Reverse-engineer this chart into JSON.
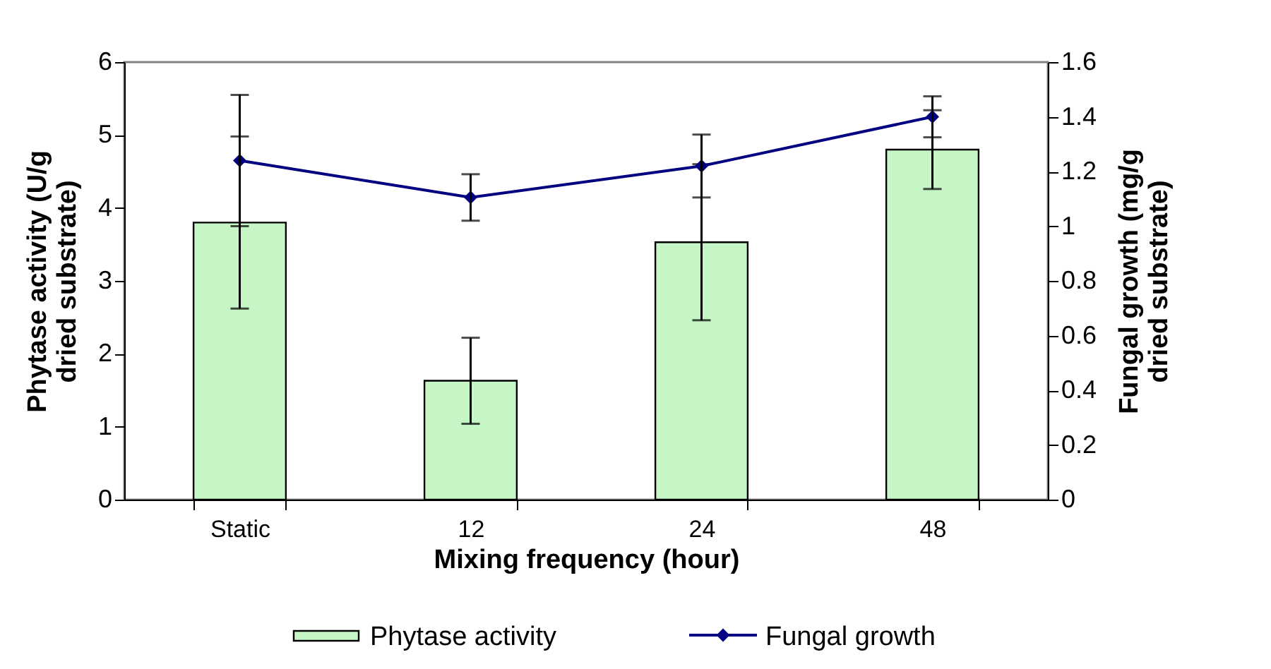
{
  "chart_data": {
    "type": "bar",
    "categories": [
      "Static",
      "12",
      "24",
      "48"
    ],
    "xlabel": "Mixing frequency (hour)",
    "ylabel": "Phytase activity (U/g dried substrate)",
    "y2label": "Fungal growth (mg/g dried substrate)",
    "series": [
      {
        "name": "Phytase activity",
        "color": "#c6f6c6",
        "values": [
          3.8,
          1.63,
          3.53,
          4.8
        ],
        "errors": [
          1.18,
          0.59,
          1.07,
          0.54
        ]
      },
      {
        "name": "Fungal growth",
        "type": "line",
        "axis": "y2",
        "color": "#000080",
        "values": [
          1.24,
          1.105,
          1.22,
          1.4
        ],
        "errors": [
          0.24,
          0.085,
          0.115,
          0.075
        ]
      }
    ],
    "ylim": [
      0,
      6
    ],
    "yticks": [
      0,
      1,
      2,
      3,
      4,
      5,
      6
    ],
    "y2lim": [
      0,
      1.6
    ],
    "y2ticks": [
      0,
      0.2,
      0.4,
      0.6,
      0.8,
      1,
      1.2,
      1.4,
      1.6
    ],
    "marker": "diamond",
    "line_style": "solid",
    "grid": false,
    "legend": "bottom"
  }
}
